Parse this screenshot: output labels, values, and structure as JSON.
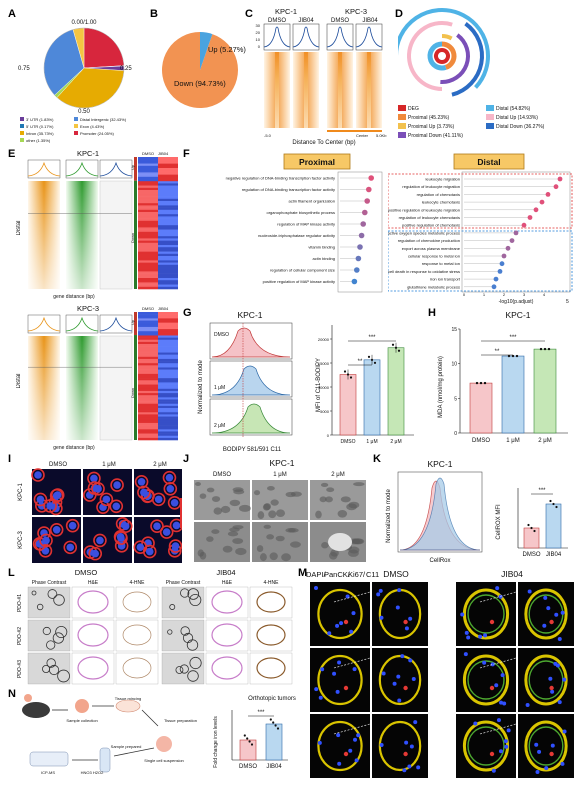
{
  "panel_labels": [
    "A",
    "B",
    "C",
    "D",
    "E",
    "F",
    "G",
    "H",
    "I",
    "J",
    "K",
    "L",
    "M",
    "N"
  ],
  "panelA": {
    "ticks": {
      "top": "0.00/1.00",
      "right": "0.25",
      "bottom": "0.50",
      "left": "0.75"
    },
    "legend": [
      "3' UTR (1.83%)",
      "5' UTR (0.17%)",
      "Intron (35.73%)",
      "other (1.35%)",
      "Distal Intergenic (32.43%)",
      "Exon (4.43%)",
      "Promoter (24.05%)"
    ],
    "colors": [
      "#6a3d9a",
      "#1f78b4",
      "#e6ab02",
      "#a6d854",
      "#4e88d9",
      "#f4c542",
      "#d7263d"
    ]
  },
  "panelB": {
    "up_label": "Up (5.27%)",
    "down_label": "Down (94.73%)",
    "up_color": "#4aa3df",
    "down_color": "#f29352"
  },
  "panelC": {
    "groups": [
      "KPC-1",
      "KPC-3"
    ],
    "conditions": [
      "DMSO",
      "JIB04",
      "DMSO",
      "JIB04"
    ],
    "yticks": [
      "30",
      "20",
      "10",
      "0"
    ],
    "xticks": [
      "-5.0",
      "Center",
      "5.0Kb"
    ],
    "xlabel": "Distance To Center (bp)"
  },
  "panelD": {
    "legend": [
      "DEG",
      "Proximal (45.23%)",
      "Distal (54.82%)",
      "Proximal Up (3.73%)",
      "Distal Up (14.93%)",
      "Proximal Down (41.11%)",
      "Distal Down (36.27%)"
    ],
    "colors": [
      "#d62728",
      "#f08a3c",
      "#4fb3e6",
      "#f2c14e",
      "#f7b6c8",
      "#7b4fb8",
      "#2b6cc4"
    ]
  },
  "panelE": {
    "titles": [
      "KPC-1",
      "KPC-3"
    ],
    "row_label": "Distal",
    "xlabel": "gene distance (bp)",
    "heat_labels": [
      "DMSO",
      "JIB04"
    ],
    "side": [
      "Up",
      "Down"
    ]
  },
  "panelF": {
    "titles": [
      "Proximal",
      "Distal"
    ],
    "proximal_terms": [
      "negative regulation of DNA-binding transcription factor activity",
      "regulation of DNA-binding transcription factor activity",
      "actin filament organization",
      "organophosphate biosynthetic process",
      "regulation of MAP kinase activity",
      "nucleoside-triphosphatase regulator activity",
      "vitamin binding",
      "actin binding",
      "regulation of cellular component size",
      "positive regulation of MAP kinase activity"
    ],
    "proximal_values": [
      3.9,
      3.6,
      3.4,
      3.1,
      2.9,
      2.7,
      2.5,
      2.3,
      2.1,
      1.8
    ],
    "distal_terms": [
      "leukocyte migration",
      "regulation of leukocyte migration",
      "regulation of chemotaxis",
      "leukocyte chemotaxis",
      "positive regulation of leukocyte migration",
      "regulation of leukocyte chemotaxis",
      "positive regulation of chemotaxis",
      "reactive oxygen species metabolic process",
      "regulation of chemokine production",
      "export across plasma membrane",
      "cellular response to metal ion",
      "response to metal ion",
      "cell death in response to oxidative stress",
      "iron ion transport",
      "glutathione metabolic process"
    ],
    "distal_values": [
      4.8,
      4.6,
      4.2,
      3.9,
      3.6,
      3.3,
      3.0,
      2.6,
      2.4,
      2.2,
      2.0,
      1.9,
      1.8,
      1.6,
      1.5
    ],
    "xlabel": "-log10(p.adjust)",
    "xticks": [
      "0",
      "1",
      "2",
      "3",
      "4",
      "5"
    ]
  },
  "panelG": {
    "title": "KPC-1",
    "ylabel": "Normalized to mode",
    "xlabel": "BODIPY 581/591 C11",
    "rows": [
      "DMSO",
      "1 μM",
      "2 μM"
    ],
    "bar_ylabel": "MFI of C11-BODIPY",
    "bar_yticks": [
      "20000",
      "15000",
      "10000",
      "5000",
      "0"
    ],
    "categories": [
      "DMSO",
      "1 μM",
      "2 μM"
    ],
    "sig": [
      "**",
      "***"
    ]
  },
  "panelH": {
    "title": "KPC-1",
    "ylabel": "MDA (nmol/mg protein)",
    "yticks": [
      "15",
      "10",
      "5",
      "0"
    ],
    "categories": [
      "DMSO",
      "1 μM",
      "2 μM"
    ],
    "sig": [
      "**",
      "***"
    ]
  },
  "panelI": {
    "cols": [
      "DMSO",
      "1 μM",
      "2 μM"
    ],
    "rows": [
      "KPC-1",
      "KPC-3"
    ]
  },
  "panelJ": {
    "title": "KPC-1",
    "cols": [
      "DMSO",
      "1 μM",
      "2 μM"
    ]
  },
  "panelK": {
    "title": "KPC-1",
    "ylabel": "Normalized to mode",
    "xlabel": "CellRox",
    "bar_ylabel": "CellROX MFI",
    "categories": [
      "DMSO",
      "JIB04"
    ],
    "sig": "***"
  },
  "panelL": {
    "groups": [
      "DMSO",
      "JIB04"
    ],
    "cols": [
      "Phase Contrast",
      "H&E",
      "4-HNE",
      "Phase Contrast",
      "H&E",
      "4-HNE"
    ],
    "rows": [
      "PDO-#1",
      "PDO-#2",
      "PDO-#3"
    ]
  },
  "panelM": {
    "groups": [
      "DMSO",
      "JIB04"
    ],
    "stain": [
      "DAPI/",
      "PanCK/",
      "Ki67/",
      "C11"
    ],
    "stain_colors": [
      "#2b57ff",
      "#e0b100",
      "#e53935",
      "#33cc33"
    ],
    "rows": [
      "PDO-#1",
      "PDO-#2",
      "PDO-#3"
    ]
  },
  "panelN": {
    "steps": [
      "Sample collection",
      "Tissue mincing",
      "Tissue preparation",
      "Sample prepared",
      "Single cell suspension",
      "HNO3 H2O2",
      "ICP-MS"
    ],
    "bar_title": "Orthotopic tumors",
    "bar_ylabel": "Fold change iron levels",
    "categories": [
      "DMSO",
      "JIB04"
    ],
    "sig": "***"
  },
  "chart_data": [
    {
      "type": "pie",
      "title": "",
      "values": [
        1.83,
        0.17,
        35.73,
        1.35,
        32.43,
        4.43,
        24.05
      ],
      "categories": [
        "3' UTR",
        "5' UTR",
        "Intron",
        "other",
        "Distal Intergenic",
        "Exon",
        "Promoter"
      ]
    },
    {
      "type": "pie",
      "title": "",
      "values": [
        5.27,
        94.73
      ],
      "categories": [
        "Up",
        "Down"
      ]
    },
    {
      "type": "bar",
      "title": "",
      "categories": [
        "Proximal",
        "Distal"
      ],
      "values": [
        45.23,
        54.82
      ]
    },
    {
      "type": "bar",
      "title": "",
      "ylabel": "-log10(p.adjust)",
      "categories": [
        "negative regulation of DNA-binding transcription factor activity",
        "regulation of DNA-binding transcription factor activity",
        "actin filament organization",
        "organophosphate biosynthetic process",
        "regulation of MAP kinase activity",
        "nucleoside-triphosphatase regulator activity",
        "vitamin binding",
        "actin binding",
        "regulation of cellular component size",
        "positive regulation of MAP kinase activity"
      ],
      "values": [
        3.9,
        3.6,
        3.4,
        3.1,
        2.9,
        2.7,
        2.5,
        2.3,
        2.1,
        1.8
      ]
    },
    {
      "type": "bar",
      "title": "",
      "ylabel": "-log10(p.adjust)",
      "categories": [
        "leukocyte migration",
        "regulation of leukocyte migration",
        "regulation of chemotaxis",
        "leukocyte chemotaxis",
        "positive regulation of leukocyte migration",
        "regulation of leukocyte chemotaxis",
        "positive regulation of chemotaxis",
        "reactive oxygen species metabolic process",
        "regulation of chemokine production",
        "export across plasma membrane",
        "cellular response to metal ion",
        "response to metal ion",
        "cell death in response to oxidative stress",
        "iron ion transport",
        "glutathione metabolic process"
      ],
      "values": [
        4.8,
        4.6,
        4.2,
        3.9,
        3.6,
        3.3,
        3.0,
        2.6,
        2.4,
        2.2,
        2.0,
        1.9,
        1.8,
        1.6,
        1.5
      ]
    },
    {
      "type": "bar",
      "title": "",
      "ylabel": "MFI of C11-BODIPY",
      "categories": [
        "DMSO",
        "1 μM",
        "2 μM"
      ],
      "values": [
        16500,
        20500,
        23800
      ],
      "ylim": [
        0,
        30000
      ]
    },
    {
      "type": "bar",
      "title": "",
      "ylabel": "MDA (nmol/mg protein)",
      "categories": [
        "DMSO",
        "1 μM",
        "2 μM"
      ],
      "values": [
        7.2,
        11.1,
        12.1
      ],
      "ylim": [
        0,
        15
      ]
    },
    {
      "type": "bar",
      "title": "",
      "ylabel": "CellROX MFI",
      "categories": [
        "DMSO",
        "JIB04"
      ],
      "values": [
        1.0,
        2.2
      ],
      "ylim": [
        0,
        3
      ]
    },
    {
      "type": "bar",
      "title": "Orthotopic tumors",
      "ylabel": "Fold change iron levels",
      "categories": [
        "DMSO",
        "JIB04"
      ],
      "values": [
        1.0,
        1.8
      ],
      "ylim": [
        0,
        2.5
      ]
    }
  ]
}
